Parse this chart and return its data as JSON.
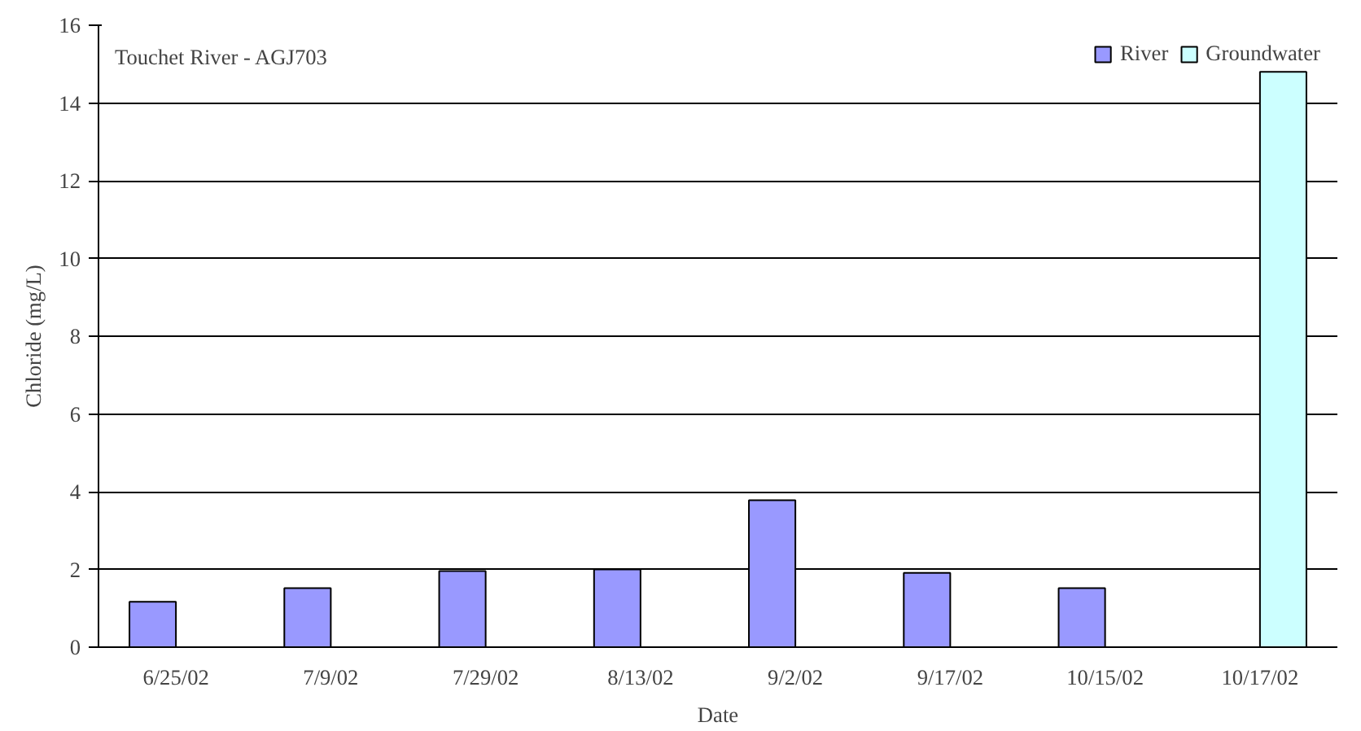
{
  "chart_data": {
    "type": "bar",
    "title": "Touchet River - AGJ703",
    "xlabel": "Date",
    "ylabel": "Chloride (mg/L)",
    "categories": [
      "6/25/02",
      "7/9/02",
      "7/29/02",
      "8/13/02",
      "9/2/02",
      "9/17/02",
      "10/15/02",
      "10/17/02"
    ],
    "series": [
      {
        "name": "River",
        "color": "#9999ff",
        "values": [
          1.17,
          1.52,
          1.96,
          2.0,
          3.78,
          1.91,
          1.52,
          null
        ]
      },
      {
        "name": "Groundwater",
        "color": "#ccffff",
        "values": [
          null,
          null,
          null,
          null,
          null,
          null,
          null,
          14.8
        ]
      }
    ],
    "ylim": [
      0,
      16
    ],
    "yticks": [
      0,
      2,
      4,
      6,
      8,
      10,
      12,
      14,
      16
    ],
    "grid": "y",
    "legend": "top right"
  }
}
